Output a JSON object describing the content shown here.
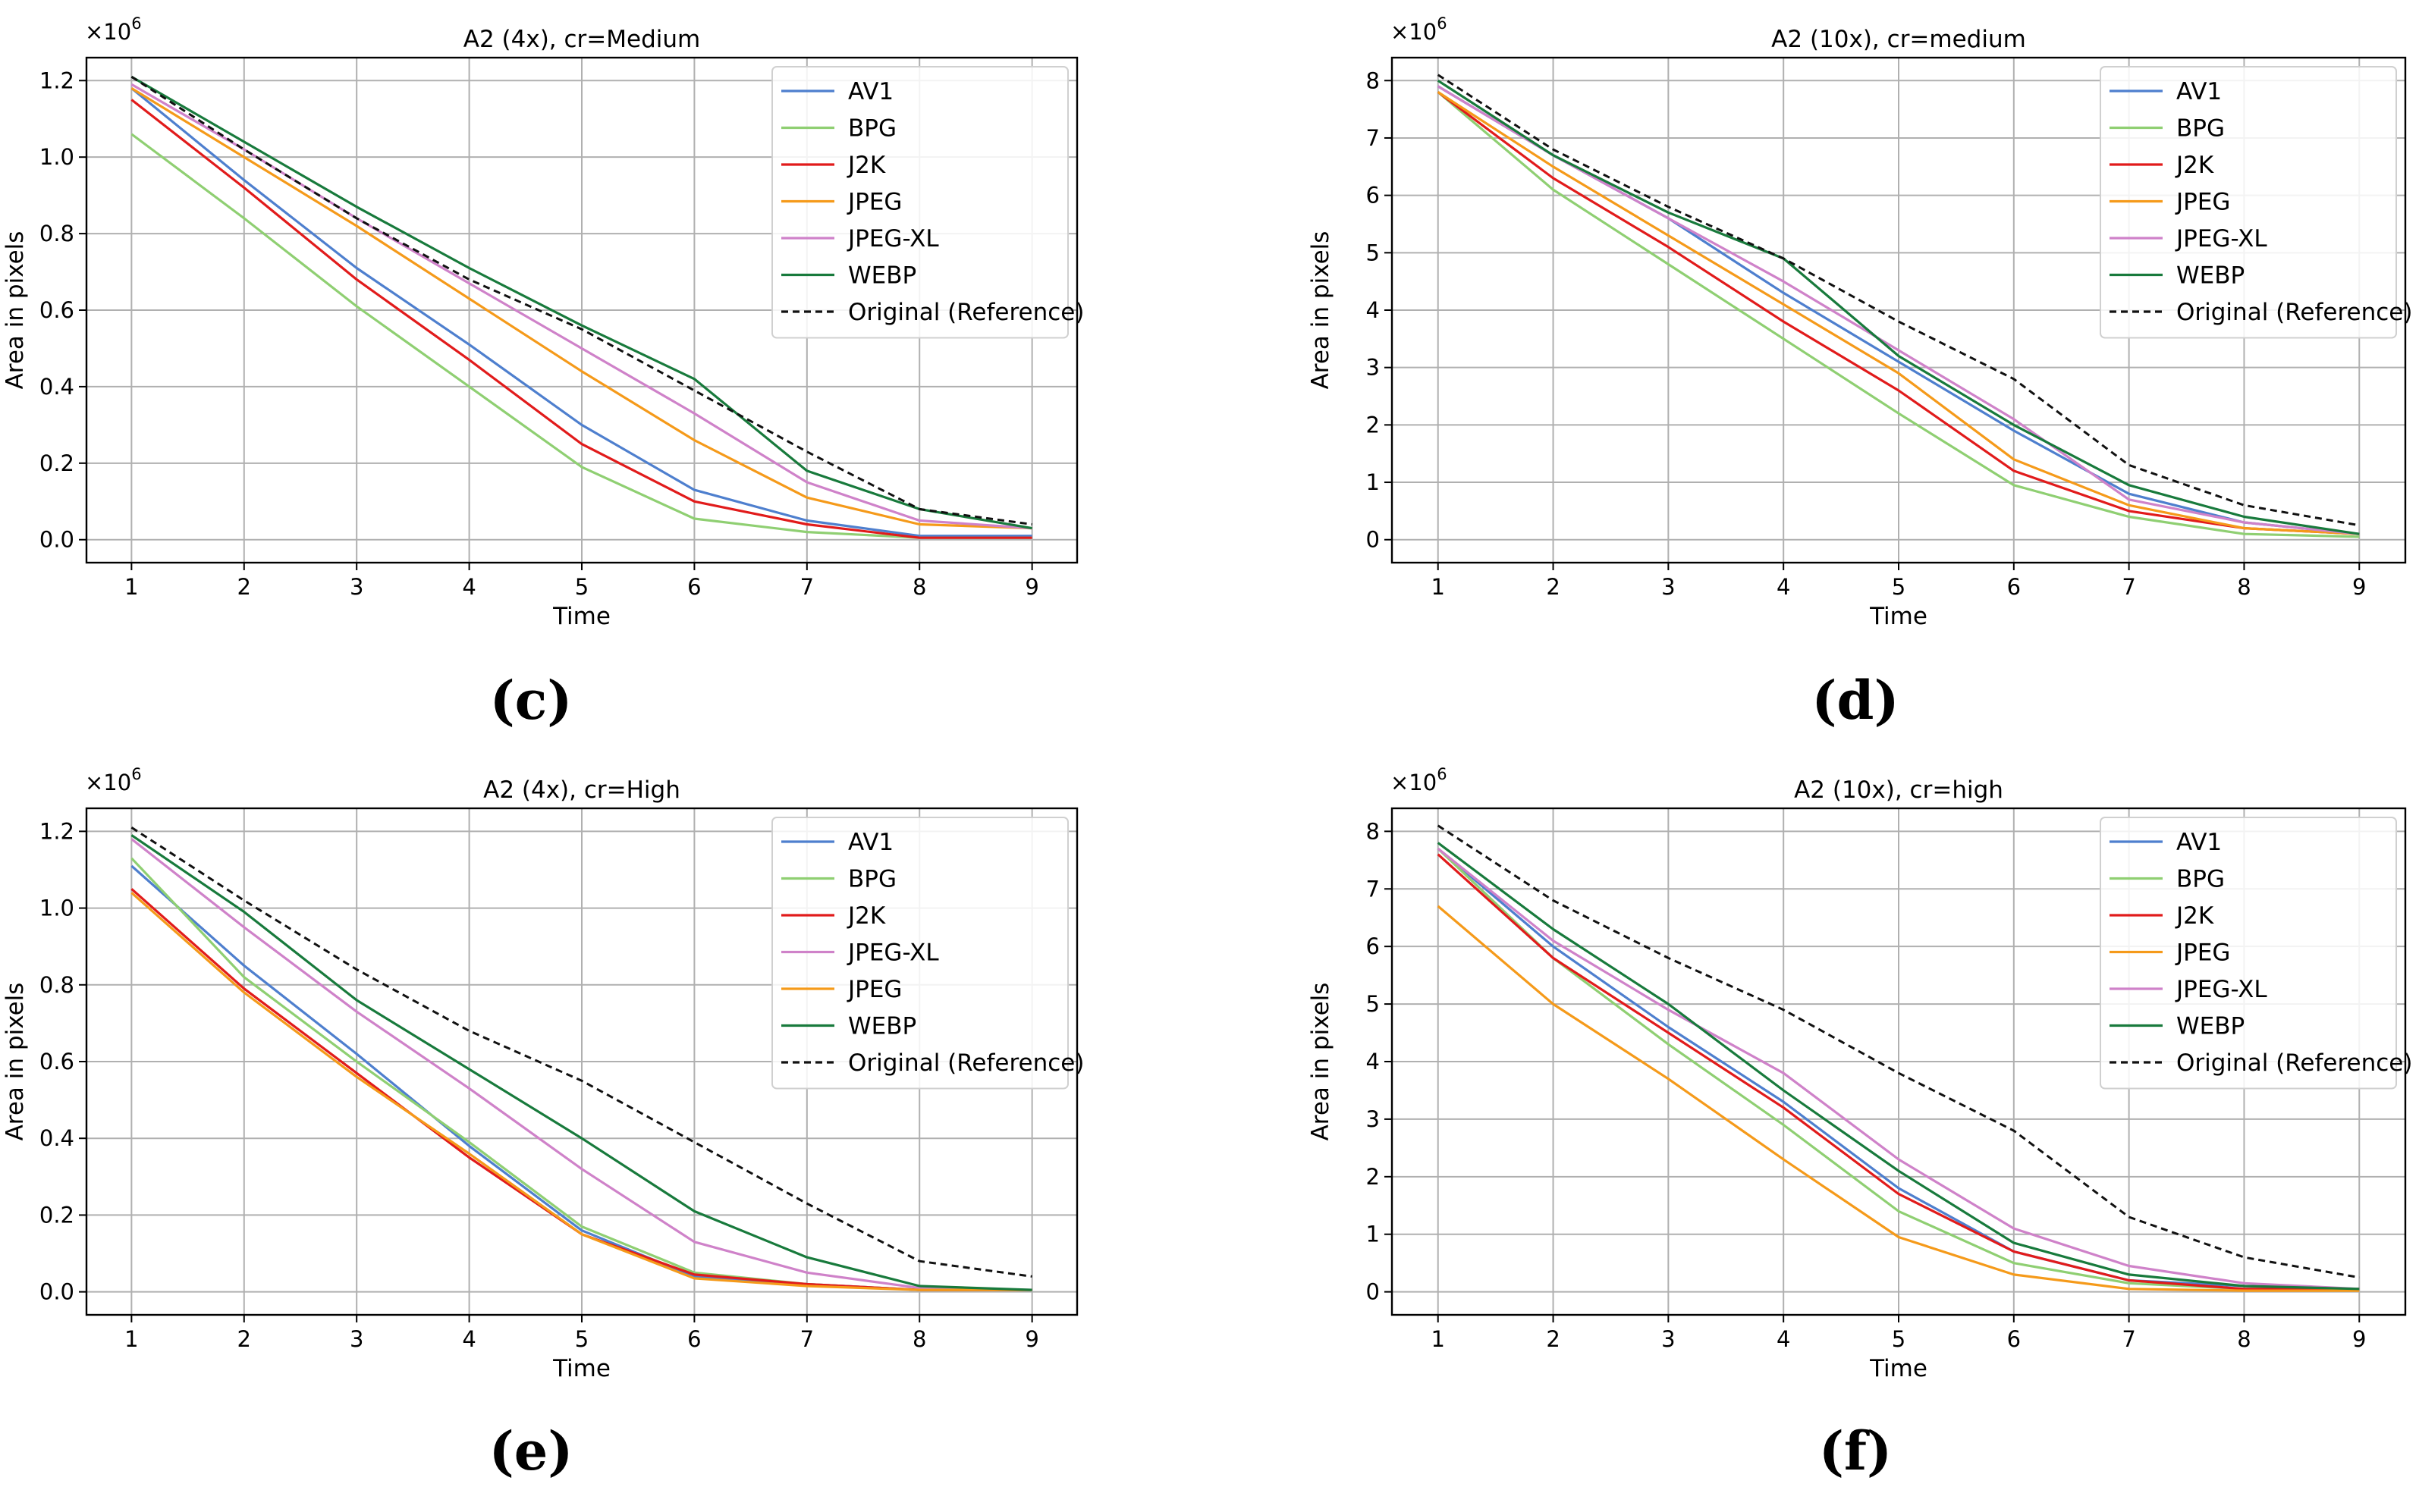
{
  "charts": [
    {
      "type": "line",
      "panel_label": "(c)",
      "title": "A2 (4x), cr=Medium",
      "xlabel": "Time",
      "ylabel": "Area in pixels",
      "y_multiplier_base": "×10",
      "y_multiplier_exp": "6",
      "x": [
        1,
        2,
        3,
        4,
        5,
        6,
        7,
        8,
        9
      ],
      "xlim": [
        0.6,
        9.4
      ],
      "ylim": [
        -0.06,
        1.26
      ],
      "yticks": [
        0.0,
        0.2,
        0.4,
        0.6,
        0.8,
        1.0,
        1.2
      ],
      "ytick_labels": [
        "0.0",
        "0.2",
        "0.4",
        "0.6",
        "0.8",
        "1.0",
        "1.2"
      ],
      "grid": true,
      "legend_position": "top-right",
      "series": [
        {
          "name": "AV1",
          "color": "#4e7fce",
          "dash": "solid",
          "values": [
            1.18,
            0.94,
            0.71,
            0.51,
            0.3,
            0.13,
            0.05,
            0.01,
            0.01
          ]
        },
        {
          "name": "BPG",
          "color": "#8fcf72",
          "dash": "solid",
          "values": [
            1.06,
            0.84,
            0.61,
            0.4,
            0.19,
            0.055,
            0.02,
            0.005,
            0.005
          ]
        },
        {
          "name": "J2K",
          "color": "#e11b1b",
          "dash": "solid",
          "values": [
            1.15,
            0.92,
            0.68,
            0.47,
            0.25,
            0.1,
            0.04,
            0.005,
            0.005
          ]
        },
        {
          "name": "JPEG",
          "color": "#f59a1a",
          "dash": "solid",
          "values": [
            1.18,
            1.0,
            0.82,
            0.63,
            0.44,
            0.26,
            0.11,
            0.04,
            0.03
          ]
        },
        {
          "name": "JPEG-XL",
          "color": "#cf82c9",
          "dash": "solid",
          "values": [
            1.19,
            1.02,
            0.84,
            0.67,
            0.5,
            0.33,
            0.15,
            0.05,
            0.03
          ]
        },
        {
          "name": "WEBP",
          "color": "#187a3c",
          "dash": "solid",
          "values": [
            1.21,
            1.04,
            0.87,
            0.71,
            0.56,
            0.42,
            0.18,
            0.08,
            0.03
          ]
        },
        {
          "name": "Original (Reference)",
          "color": "#111111",
          "dash": "dashed",
          "values": [
            1.21,
            1.02,
            0.84,
            0.68,
            0.55,
            0.39,
            0.23,
            0.08,
            0.04
          ]
        }
      ]
    },
    {
      "type": "line",
      "panel_label": "(d)",
      "title": "A2 (10x), cr=medium",
      "xlabel": "Time",
      "ylabel": "Area in pixels",
      "y_multiplier_base": "×10",
      "y_multiplier_exp": "6",
      "x": [
        1,
        2,
        3,
        4,
        5,
        6,
        7,
        8,
        9
      ],
      "xlim": [
        0.6,
        9.4
      ],
      "ylim": [
        -0.4,
        8.4
      ],
      "yticks": [
        0,
        1,
        2,
        3,
        4,
        5,
        6,
        7,
        8
      ],
      "ytick_labels": [
        "0",
        "1",
        "2",
        "3",
        "4",
        "5",
        "6",
        "7",
        "8"
      ],
      "grid": true,
      "legend_position": "top-right",
      "series": [
        {
          "name": "AV1",
          "color": "#4e7fce",
          "dash": "solid",
          "values": [
            7.9,
            6.7,
            5.6,
            4.3,
            3.1,
            1.9,
            0.8,
            0.3,
            0.1
          ]
        },
        {
          "name": "BPG",
          "color": "#8fcf72",
          "dash": "solid",
          "values": [
            7.8,
            6.1,
            4.8,
            3.5,
            2.2,
            0.95,
            0.4,
            0.1,
            0.05
          ]
        },
        {
          "name": "J2K",
          "color": "#e11b1b",
          "dash": "solid",
          "values": [
            7.8,
            6.3,
            5.1,
            3.8,
            2.6,
            1.2,
            0.5,
            0.2,
            0.1
          ]
        },
        {
          "name": "JPEG",
          "color": "#f59a1a",
          "dash": "solid",
          "values": [
            7.8,
            6.5,
            5.3,
            4.1,
            2.9,
            1.4,
            0.6,
            0.2,
            0.1
          ]
        },
        {
          "name": "JPEG-XL",
          "color": "#cf82c9",
          "dash": "solid",
          "values": [
            7.9,
            6.7,
            5.6,
            4.5,
            3.3,
            2.1,
            0.7,
            0.3,
            0.1
          ]
        },
        {
          "name": "WEBP",
          "color": "#187a3c",
          "dash": "solid",
          "values": [
            8.0,
            6.7,
            5.7,
            4.9,
            3.2,
            2.0,
            0.95,
            0.4,
            0.1
          ]
        },
        {
          "name": "Original (Reference)",
          "color": "#111111",
          "dash": "dashed",
          "values": [
            8.1,
            6.8,
            5.8,
            4.9,
            3.8,
            2.8,
            1.3,
            0.6,
            0.25
          ]
        }
      ]
    },
    {
      "type": "line",
      "panel_label": "(e)",
      "title": "A2 (4x), cr=High",
      "xlabel": "Time",
      "ylabel": "Area in pixels",
      "y_multiplier_base": "×10",
      "y_multiplier_exp": "6",
      "x": [
        1,
        2,
        3,
        4,
        5,
        6,
        7,
        8,
        9
      ],
      "xlim": [
        0.6,
        9.4
      ],
      "ylim": [
        -0.06,
        1.26
      ],
      "yticks": [
        0.0,
        0.2,
        0.4,
        0.6,
        0.8,
        1.0,
        1.2
      ],
      "ytick_labels": [
        "0.0",
        "0.2",
        "0.4",
        "0.6",
        "0.8",
        "1.0",
        "1.2"
      ],
      "grid": true,
      "legend_position": "top-right",
      "series": [
        {
          "name": "AV1",
          "color": "#4e7fce",
          "dash": "solid",
          "values": [
            1.11,
            0.85,
            0.62,
            0.38,
            0.16,
            0.04,
            0.02,
            0.005,
            0.005
          ]
        },
        {
          "name": "BPG",
          "color": "#8fcf72",
          "dash": "solid",
          "values": [
            1.13,
            0.82,
            0.6,
            0.39,
            0.17,
            0.05,
            0.02,
            0.005,
            0.005
          ]
        },
        {
          "name": "J2K",
          "color": "#e11b1b",
          "dash": "solid",
          "values": [
            1.05,
            0.79,
            0.57,
            0.35,
            0.15,
            0.045,
            0.02,
            0.005,
            0.005
          ]
        },
        {
          "name": "JPEG-XL",
          "color": "#cf82c9",
          "dash": "solid",
          "values": [
            1.18,
            0.95,
            0.73,
            0.53,
            0.32,
            0.13,
            0.05,
            0.01,
            0.005
          ]
        },
        {
          "name": "JPEG",
          "color": "#f59a1a",
          "dash": "solid",
          "values": [
            1.04,
            0.78,
            0.56,
            0.36,
            0.15,
            0.035,
            0.015,
            0.005,
            0.005
          ]
        },
        {
          "name": "WEBP",
          "color": "#187a3c",
          "dash": "solid",
          "values": [
            1.19,
            0.99,
            0.76,
            0.58,
            0.4,
            0.21,
            0.09,
            0.015,
            0.005
          ]
        },
        {
          "name": "Original (Reference)",
          "color": "#111111",
          "dash": "dashed",
          "values": [
            1.21,
            1.02,
            0.84,
            0.68,
            0.55,
            0.39,
            0.23,
            0.08,
            0.04
          ]
        }
      ]
    },
    {
      "type": "line",
      "panel_label": "(f)",
      "title": "A2 (10x), cr=high",
      "xlabel": "Time",
      "ylabel": "Area in pixels",
      "y_multiplier_base": "×10",
      "y_multiplier_exp": "6",
      "x": [
        1,
        2,
        3,
        4,
        5,
        6,
        7,
        8,
        9
      ],
      "xlim": [
        0.6,
        9.4
      ],
      "ylim": [
        -0.4,
        8.4
      ],
      "yticks": [
        0,
        1,
        2,
        3,
        4,
        5,
        6,
        7,
        8
      ],
      "ytick_labels": [
        "0",
        "1",
        "2",
        "3",
        "4",
        "5",
        "6",
        "7",
        "8"
      ],
      "grid": true,
      "legend_position": "top-right",
      "series": [
        {
          "name": "AV1",
          "color": "#4e7fce",
          "dash": "solid",
          "values": [
            7.7,
            6.0,
            4.6,
            3.3,
            1.8,
            0.7,
            0.2,
            0.1,
            0.05
          ]
        },
        {
          "name": "BPG",
          "color": "#8fcf72",
          "dash": "solid",
          "values": [
            7.7,
            5.8,
            4.3,
            2.9,
            1.4,
            0.5,
            0.15,
            0.05,
            0.05
          ]
        },
        {
          "name": "J2K",
          "color": "#e11b1b",
          "dash": "solid",
          "values": [
            7.6,
            5.8,
            4.5,
            3.2,
            1.7,
            0.7,
            0.2,
            0.05,
            0.05
          ]
        },
        {
          "name": "JPEG",
          "color": "#f59a1a",
          "dash": "solid",
          "values": [
            6.7,
            5.0,
            3.7,
            2.3,
            0.95,
            0.3,
            0.05,
            0.02,
            0.02
          ]
        },
        {
          "name": "JPEG-XL",
          "color": "#cf82c9",
          "dash": "solid",
          "values": [
            7.7,
            6.1,
            4.9,
            3.8,
            2.3,
            1.1,
            0.45,
            0.15,
            0.05
          ]
        },
        {
          "name": "WEBP",
          "color": "#187a3c",
          "dash": "solid",
          "values": [
            7.8,
            6.3,
            5.0,
            3.5,
            2.1,
            0.85,
            0.3,
            0.1,
            0.05
          ]
        },
        {
          "name": "Original (Reference)",
          "color": "#111111",
          "dash": "dashed",
          "values": [
            8.1,
            6.8,
            5.8,
            4.9,
            3.8,
            2.8,
            1.3,
            0.6,
            0.25
          ]
        }
      ]
    }
  ]
}
